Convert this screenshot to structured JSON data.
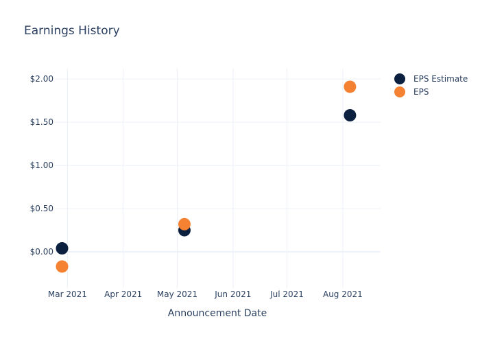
{
  "chart_data": {
    "type": "scatter",
    "title": "Earnings History",
    "xlabel": "Announcement Date",
    "ylabel": "",
    "x_ticks": [
      "Mar 2021",
      "Apr 2021",
      "May 2021",
      "Jun 2021",
      "Jul 2021",
      "Aug 2021"
    ],
    "y_ticks": [
      "$0.00",
      "$0.50",
      "$1.00",
      "$1.50",
      "$2.00"
    ],
    "ylim": [
      -0.42,
      2.12
    ],
    "xlim": [
      "2021-02-22",
      "2021-08-22"
    ],
    "grid": true,
    "legend_position": "top-right",
    "series": [
      {
        "name": "EPS Estimate",
        "color": "#0b1f3f",
        "points": [
          {
            "x": "2021-02-26",
            "y": 0.04
          },
          {
            "x": "2021-05-05",
            "y": 0.25
          },
          {
            "x": "2021-08-05",
            "y": 1.58
          }
        ]
      },
      {
        "name": "EPS",
        "color": "#f58233",
        "points": [
          {
            "x": "2021-02-26",
            "y": -0.17
          },
          {
            "x": "2021-05-05",
            "y": 0.32
          },
          {
            "x": "2021-08-05",
            "y": 1.91
          }
        ]
      }
    ]
  }
}
